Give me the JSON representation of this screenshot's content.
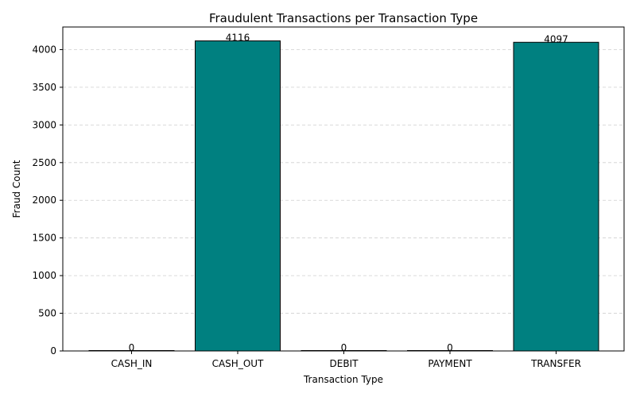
{
  "chart_data": {
    "type": "bar",
    "title": "Fraudulent Transactions per Transaction Type",
    "xlabel": "Transaction Type",
    "ylabel": "Fraud Count",
    "categories": [
      "CASH_IN",
      "CASH_OUT",
      "DEBIT",
      "PAYMENT",
      "TRANSFER"
    ],
    "values": [
      0,
      4116,
      0,
      0,
      4097
    ],
    "data_labels": [
      "0",
      "4116",
      "0",
      "0",
      "4097"
    ],
    "ylim": [
      0,
      4300
    ],
    "yticks": [
      0,
      500,
      1000,
      1500,
      2000,
      2500,
      3000,
      3500,
      4000
    ],
    "grid": "y-dashed",
    "bar_color": "#008080",
    "bar_edge_color": "#000000"
  }
}
